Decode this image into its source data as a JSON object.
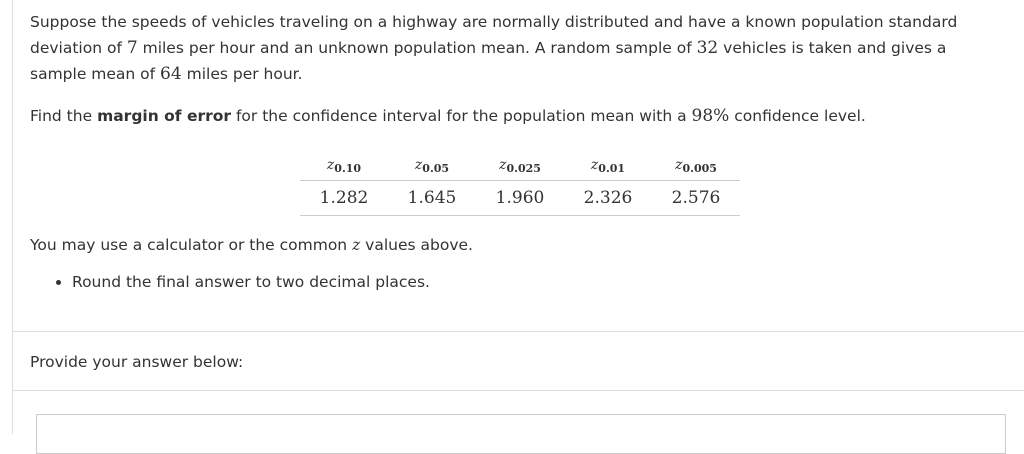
{
  "question": {
    "paragraph1": [
      "Suppose the speeds of vehicles traveling on a highway are normally distributed and have a known population standard deviation of ",
      "7",
      " miles per hour and an unknown population mean. A random sample of ",
      "32",
      " vehicles is taken and gives a sample mean of ",
      "64",
      " miles per hour."
    ],
    "paragraph2": [
      "Find the ",
      "margin of error",
      " for the confidence interval for the population mean with a ",
      "98%",
      " confidence level."
    ]
  },
  "table": {
    "header": [
      {
        "symbol": "z",
        "subscript": "0.10"
      },
      {
        "symbol": "z",
        "subscript": "0.05"
      },
      {
        "symbol": "z",
        "subscript": "0.025"
      },
      {
        "symbol": "z",
        "subscript": "0.01"
      },
      {
        "symbol": "z",
        "subscript": "0.005"
      }
    ],
    "values": [
      "1.282",
      "1.645",
      "1.960",
      "2.326",
      "2.576"
    ]
  },
  "note": [
    "You may use a calculator or the common ",
    "z",
    " values above."
  ],
  "bullet": "Round the final answer to two decimal places.",
  "answer_prompt": "Provide your answer below:"
}
